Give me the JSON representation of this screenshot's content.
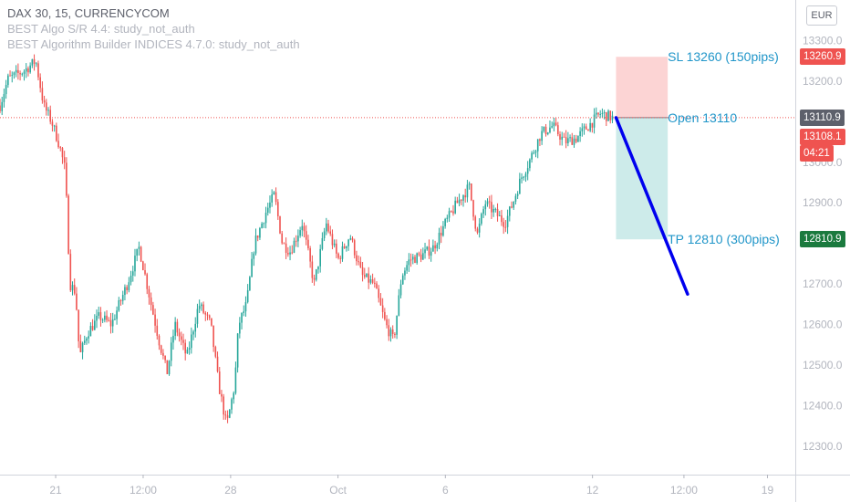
{
  "legend": {
    "title": "DAX 30, 15, CURRENCYCOM",
    "indicator_1": "BEST Algo S/R 4.4: study_not_auth",
    "indicator_2": "BEST Algorithm Builder INDICES 4.7.0: study_not_auth"
  },
  "currency_button": "EUR",
  "price_tags": {
    "sl": "13260.9",
    "open": "13110.9",
    "last": "13108.1",
    "countdown": "04:21",
    "tp": "12810.9"
  },
  "colors": {
    "up": "#26a69a",
    "down": "#ef5350",
    "sl_zone": "#fcd4d4",
    "tp_zone": "#cdebea",
    "annotation_text": "#2196c9",
    "arrow": "#0000ee",
    "open_tag": "#5d606b",
    "sl_tag": "#ef5350",
    "tp_tag": "#1b7a3e"
  },
  "chart_data": {
    "type": "candlestick",
    "symbol": "DAX 30",
    "timeframe": "15",
    "source": "CURRENCYCOM",
    "y_ticks": [
      12300,
      12400,
      12500,
      12600,
      12700,
      12800,
      12900,
      13000,
      13100,
      13200,
      13300
    ],
    "y_tick_labels": [
      "12300.0",
      "12400.0",
      "12500.0",
      "12600.0",
      "12700.0",
      "12800.0",
      "12900.0",
      "13000.0",
      "13100.0",
      "13200.0",
      "13300.0"
    ],
    "ylim": [
      12230,
      13400
    ],
    "x_ticks": [
      {
        "label": "21",
        "t": 0.07
      },
      {
        "label": "12:00",
        "t": 0.18
      },
      {
        "label": "28",
        "t": 0.29
      },
      {
        "label": "Oct",
        "t": 0.425
      },
      {
        "label": "6",
        "t": 0.56
      },
      {
        "label": "12",
        "t": 0.745
      },
      {
        "label": "12:00",
        "t": 0.86
      },
      {
        "label": "19",
        "t": 0.965
      }
    ],
    "price_path": [
      {
        "t": 0.0,
        "v": 13140
      },
      {
        "t": 0.01,
        "v": 13205
      },
      {
        "t": 0.03,
        "v": 13225
      },
      {
        "t": 0.045,
        "v": 13250
      },
      {
        "t": 0.055,
        "v": 13140
      },
      {
        "t": 0.065,
        "v": 13100
      },
      {
        "t": 0.075,
        "v": 13040
      },
      {
        "t": 0.082,
        "v": 12980
      },
      {
        "t": 0.088,
        "v": 12700
      },
      {
        "t": 0.095,
        "v": 12680
      },
      {
        "t": 0.1,
        "v": 12520
      },
      {
        "t": 0.11,
        "v": 12580
      },
      {
        "t": 0.125,
        "v": 12620
      },
      {
        "t": 0.14,
        "v": 12600
      },
      {
        "t": 0.16,
        "v": 12700
      },
      {
        "t": 0.175,
        "v": 12790
      },
      {
        "t": 0.19,
        "v": 12650
      },
      {
        "t": 0.2,
        "v": 12560
      },
      {
        "t": 0.21,
        "v": 12480
      },
      {
        "t": 0.22,
        "v": 12600
      },
      {
        "t": 0.235,
        "v": 12520
      },
      {
        "t": 0.25,
        "v": 12650
      },
      {
        "t": 0.265,
        "v": 12600
      },
      {
        "t": 0.275,
        "v": 12450
      },
      {
        "t": 0.285,
        "v": 12350
      },
      {
        "t": 0.295,
        "v": 12450
      },
      {
        "t": 0.3,
        "v": 12600
      },
      {
        "t": 0.31,
        "v": 12650
      },
      {
        "t": 0.32,
        "v": 12800
      },
      {
        "t": 0.335,
        "v": 12880
      },
      {
        "t": 0.345,
        "v": 12920
      },
      {
        "t": 0.355,
        "v": 12800
      },
      {
        "t": 0.365,
        "v": 12780
      },
      {
        "t": 0.38,
        "v": 12850
      },
      {
        "t": 0.395,
        "v": 12700
      },
      {
        "t": 0.41,
        "v": 12850
      },
      {
        "t": 0.425,
        "v": 12760
      },
      {
        "t": 0.44,
        "v": 12820
      },
      {
        "t": 0.455,
        "v": 12720
      },
      {
        "t": 0.47,
        "v": 12700
      },
      {
        "t": 0.485,
        "v": 12600
      },
      {
        "t": 0.495,
        "v": 12560
      },
      {
        "t": 0.505,
        "v": 12720
      },
      {
        "t": 0.515,
        "v": 12760
      },
      {
        "t": 0.53,
        "v": 12770
      },
      {
        "t": 0.545,
        "v": 12790
      },
      {
        "t": 0.56,
        "v": 12850
      },
      {
        "t": 0.575,
        "v": 12900
      },
      {
        "t": 0.59,
        "v": 12940
      },
      {
        "t": 0.6,
        "v": 12820
      },
      {
        "t": 0.61,
        "v": 12900
      },
      {
        "t": 0.62,
        "v": 12880
      },
      {
        "t": 0.635,
        "v": 12850
      },
      {
        "t": 0.645,
        "v": 12900
      },
      {
        "t": 0.655,
        "v": 12960
      },
      {
        "t": 0.665,
        "v": 13000
      },
      {
        "t": 0.68,
        "v": 13070
      },
      {
        "t": 0.695,
        "v": 13090
      },
      {
        "t": 0.71,
        "v": 13050
      },
      {
        "t": 0.725,
        "v": 13060
      },
      {
        "t": 0.74,
        "v": 13090
      },
      {
        "t": 0.755,
        "v": 13120
      },
      {
        "t": 0.77,
        "v": 13110
      }
    ],
    "horizontal_line": {
      "value": 13110,
      "style": "dotted"
    },
    "position": {
      "side": "short",
      "entry": 13110,
      "stop_loss": 13260,
      "take_profit": 12810,
      "t_start": 0.77,
      "t_end": 0.835,
      "labels": {
        "sl": "SL 13260 (150pips)",
        "open": "Open 13110",
        "tp": "TP 12810 (300pips)"
      }
    },
    "arrow": {
      "from": {
        "t": 0.77,
        "v": 13110
      },
      "to": {
        "t": 0.86,
        "v": 12675
      }
    }
  }
}
